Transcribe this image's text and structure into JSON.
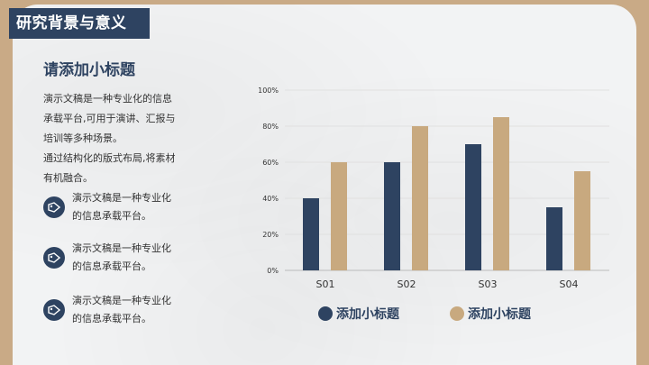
{
  "slide": {
    "title": "研究背景与意义",
    "subtitle": "请添加小标题",
    "paragraph_lines": [
      "演示文稿是一种专业化的信息",
      "承载平台,可用于演讲、汇报与",
      "培训等多种场景。",
      "通过结构化的版式布局,将素材",
      "有机融合。"
    ],
    "bullets": [
      {
        "lines": [
          "演示文稿是一种专业化",
          "的信息承载平台。"
        ],
        "icon": "tag-icon"
      },
      {
        "lines": [
          "演示文稿是一种专业化",
          "的信息承载平台。"
        ],
        "icon": "tag-icon"
      },
      {
        "lines": [
          "演示文稿是一种专业化",
          "的信息承载平台。"
        ],
        "icon": "tag-icon"
      }
    ]
  },
  "colors": {
    "navy": "#2e4361",
    "tan": "#c8a97f",
    "background": "#c9aa86",
    "paper": "#f2f3f4"
  },
  "chart_data": {
    "type": "bar",
    "categories": [
      "S01",
      "S02",
      "S03",
      "S04"
    ],
    "series": [
      {
        "name": "添加小标题",
        "values": [
          40,
          60,
          70,
          35
        ],
        "color": "#2e4361"
      },
      {
        "name": "添加小标题",
        "values": [
          60,
          80,
          85,
          55
        ],
        "color": "#c8a97f"
      }
    ],
    "y_ticks": [
      "0%",
      "20%",
      "40%",
      "60%",
      "80%",
      "100%"
    ],
    "ylim": [
      0,
      100
    ],
    "grid": true,
    "legend_position": "bottom"
  }
}
